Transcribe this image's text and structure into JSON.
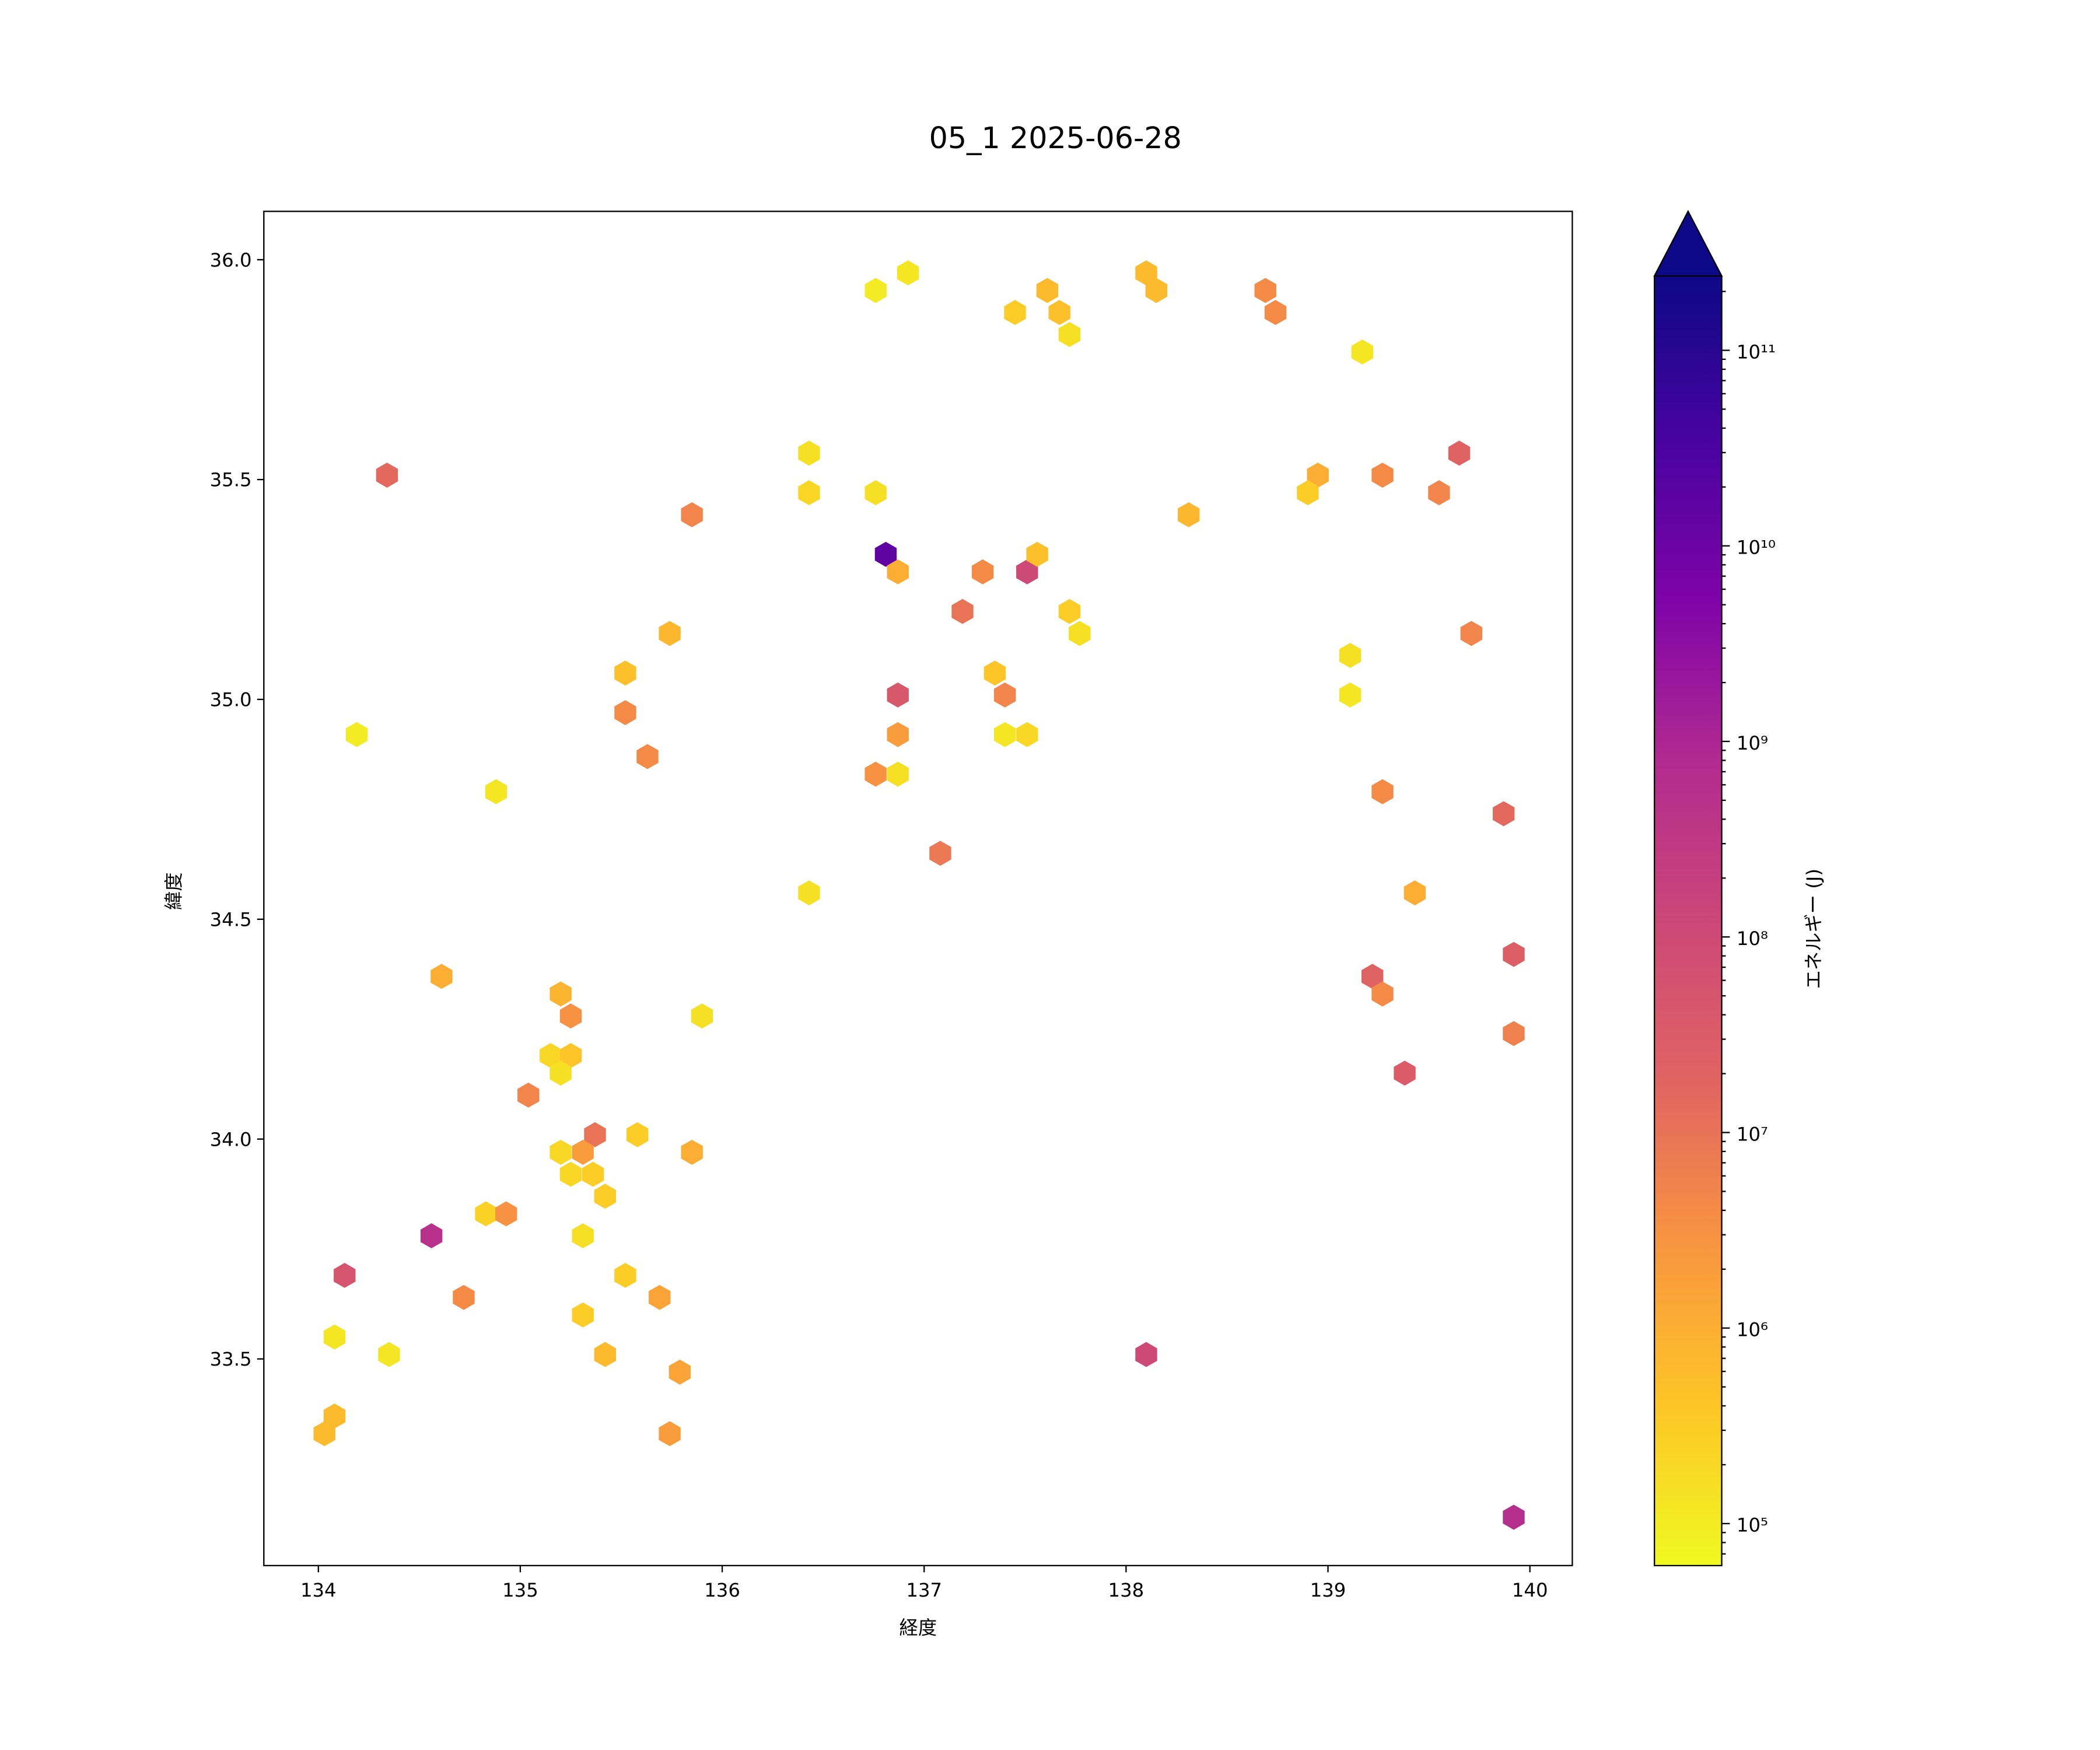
{
  "chart_data": {
    "type": "hexbin",
    "title": "05_1 2025-06-28",
    "xlabel": "経度",
    "ylabel": "緯度",
    "colorbar_label": "エネルギー (J)",
    "colormap": "plasma_r",
    "color_scale": "log",
    "color_range": [
      61000.0,
      240000000000.0
    ],
    "colorbar_extend": "max",
    "xlim": [
      133.73,
      140.21
    ],
    "ylim": [
      33.03,
      36.11
    ],
    "xticks": [
      "134",
      "135",
      "136",
      "137",
      "138",
      "139",
      "140"
    ],
    "yticks": [
      "33.5",
      "34.0",
      "34.5",
      "35.0",
      "35.5",
      "36.0"
    ],
    "cticks": [
      {
        "exp": 5,
        "label": "10⁵"
      },
      {
        "exp": 6,
        "label": "10⁶"
      },
      {
        "exp": 7,
        "label": "10⁷"
      },
      {
        "exp": 8,
        "label": "10⁸"
      },
      {
        "exp": 9,
        "label": "10⁹"
      },
      {
        "exp": 10,
        "label": "10¹⁰"
      },
      {
        "exp": 11,
        "label": "10¹¹"
      }
    ],
    "grid": false,
    "points": [
      [
        134.34,
        35.51,
        15000000.0
      ],
      [
        134.19,
        34.92,
        100000.0
      ],
      [
        134.88,
        34.79,
        120000.0
      ],
      [
        134.61,
        34.37,
        1000000.0
      ],
      [
        135.2,
        34.33,
        800000.0
      ],
      [
        135.25,
        34.28,
        3000000.0
      ],
      [
        135.15,
        34.19,
        200000.0
      ],
      [
        135.25,
        34.19,
        400000.0
      ],
      [
        135.2,
        34.15,
        150000.0
      ],
      [
        135.04,
        34.1,
        5000000.0
      ],
      [
        135.37,
        34.01,
        10000000.0
      ],
      [
        135.58,
        34.01,
        300000.0
      ],
      [
        135.9,
        34.28,
        150000.0
      ],
      [
        135.2,
        33.97,
        200000.0
      ],
      [
        135.31,
        33.97,
        2000000.0
      ],
      [
        135.25,
        33.92,
        200000.0
      ],
      [
        135.36,
        33.92,
        300000.0
      ],
      [
        135.42,
        33.87,
        300000.0
      ],
      [
        135.85,
        33.97,
        1000000.0
      ],
      [
        134.83,
        33.83,
        250000.0
      ],
      [
        134.93,
        33.83,
        3000000.0
      ],
      [
        134.56,
        33.78,
        500000000.0
      ],
      [
        135.31,
        33.78,
        150000.0
      ],
      [
        134.13,
        33.69,
        50000000.0
      ],
      [
        134.72,
        33.64,
        4000000.0
      ],
      [
        135.52,
        33.69,
        300000.0
      ],
      [
        135.69,
        33.64,
        1500000.0
      ],
      [
        135.31,
        33.6,
        300000.0
      ],
      [
        134.08,
        33.55,
        120000.0
      ],
      [
        134.35,
        33.51,
        120000.0
      ],
      [
        135.42,
        33.51,
        600000.0
      ],
      [
        135.79,
        33.47,
        1500000.0
      ],
      [
        134.08,
        33.37,
        600000.0
      ],
      [
        134.03,
        33.33,
        600000.0
      ],
      [
        135.74,
        33.33,
        2000000.0
      ],
      [
        135.85,
        35.42,
        5000000.0
      ],
      [
        135.74,
        35.15,
        700000.0
      ],
      [
        135.52,
        35.06,
        500000.0
      ],
      [
        135.52,
        34.97,
        4000000.0
      ],
      [
        135.63,
        34.87,
        4000000.0
      ],
      [
        136.43,
        35.56,
        150000.0
      ],
      [
        136.43,
        35.47,
        200000.0
      ],
      [
        136.43,
        34.56,
        150000.0
      ],
      [
        136.76,
        35.93,
        100000.0
      ],
      [
        136.92,
        35.97,
        120000.0
      ],
      [
        136.76,
        35.47,
        150000.0
      ],
      [
        136.81,
        35.33,
        15000000000.0
      ],
      [
        136.87,
        35.29,
        1000000.0
      ],
      [
        136.87,
        35.01,
        40000000.0
      ],
      [
        136.87,
        34.92,
        2000000.0
      ],
      [
        136.76,
        34.83,
        3000000.0
      ],
      [
        136.87,
        34.83,
        150000.0
      ],
      [
        137.08,
        34.65,
        8000000.0
      ],
      [
        137.19,
        35.2,
        10000000.0
      ],
      [
        137.29,
        35.29,
        4000000.0
      ],
      [
        137.35,
        35.06,
        400000.0
      ],
      [
        137.4,
        35.01,
        5000000.0
      ],
      [
        137.4,
        34.92,
        120000.0
      ],
      [
        137.51,
        34.92,
        200000.0
      ],
      [
        137.51,
        35.29,
        100000000.0
      ],
      [
        137.56,
        35.33,
        500000.0
      ],
      [
        137.45,
        35.88,
        300000.0
      ],
      [
        137.61,
        35.93,
        600000.0
      ],
      [
        137.67,
        35.88,
        500000.0
      ],
      [
        137.72,
        35.83,
        150000.0
      ],
      [
        137.72,
        35.2,
        300000.0
      ],
      [
        137.77,
        35.15,
        150000.0
      ],
      [
        138.1,
        35.97,
        600000.0
      ],
      [
        138.15,
        35.93,
        600000.0
      ],
      [
        138.31,
        35.42,
        700000.0
      ],
      [
        138.1,
        33.51,
        100000000.0
      ],
      [
        138.69,
        35.93,
        4000000.0
      ],
      [
        138.74,
        35.88,
        4000000.0
      ],
      [
        139.17,
        35.79,
        120000.0
      ],
      [
        138.95,
        35.51,
        1000000.0
      ],
      [
        138.9,
        35.47,
        300000.0
      ],
      [
        139.27,
        35.51,
        4000000.0
      ],
      [
        139.55,
        35.47,
        5000000.0
      ],
      [
        139.65,
        35.56,
        20000000.0
      ],
      [
        139.71,
        35.15,
        5000000.0
      ],
      [
        139.11,
        35.1,
        150000.0
      ],
      [
        139.11,
        35.01,
        120000.0
      ],
      [
        139.27,
        34.79,
        4000000.0
      ],
      [
        139.87,
        34.74,
        15000000.0
      ],
      [
        139.43,
        34.56,
        1000000.0
      ],
      [
        139.92,
        34.42,
        25000000.0
      ],
      [
        139.22,
        34.37,
        20000000.0
      ],
      [
        139.27,
        34.33,
        4000000.0
      ],
      [
        139.92,
        34.24,
        6000000.0
      ],
      [
        139.38,
        34.15,
        30000000.0
      ],
      [
        139.92,
        33.14,
        600000000.0
      ]
    ]
  }
}
